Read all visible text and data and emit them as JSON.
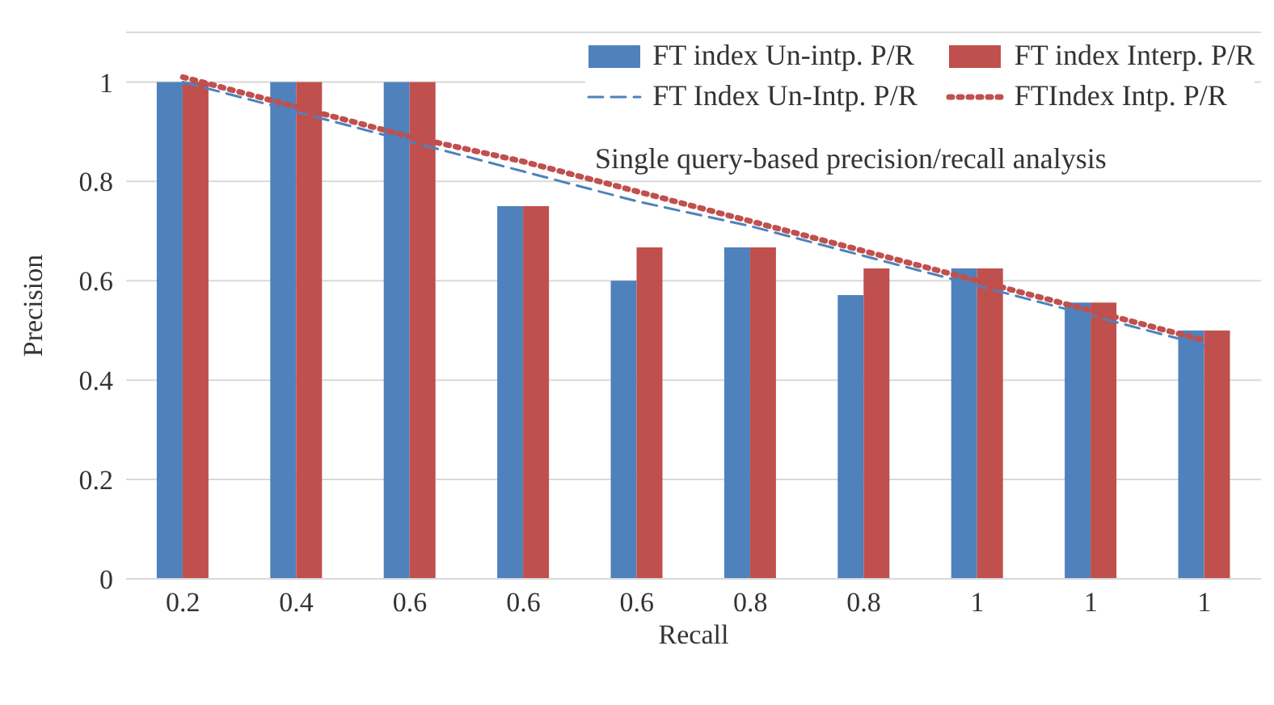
{
  "chart_data": {
    "type": "bar",
    "xlabel": "Recall",
    "ylabel": "Precision",
    "categories": [
      "0.2",
      "0.4",
      "0.6",
      "0.6",
      "0.6",
      "0.8",
      "0.8",
      "1",
      "1",
      "1"
    ],
    "series": [
      {
        "name": "FT index Un-intp. P/R",
        "color": "#4f81bd",
        "values": [
          1,
          1,
          1,
          0.75,
          0.6,
          0.667,
          0.571,
          0.625,
          0.556,
          0.5
        ]
      },
      {
        "name": "FT index Interp. P/R",
        "color": "#c0504d",
        "values": [
          1,
          1,
          1,
          0.75,
          0.667,
          0.667,
          0.625,
          0.625,
          0.556,
          0.5
        ]
      },
      {
        "name": "FT Index Un-Intp. P/R",
        "type": "line",
        "line_style": "dashed",
        "color": "#4f81bd",
        "values": [
          1.0,
          0.94,
          0.88,
          0.82,
          0.76,
          0.71,
          0.65,
          0.59,
          0.53,
          0.47
        ]
      },
      {
        "name": "FTIndex Intp. P/R",
        "type": "line",
        "line_style": "dotted",
        "color": "#c0504d",
        "values": [
          1.01,
          0.95,
          0.89,
          0.84,
          0.78,
          0.72,
          0.66,
          0.6,
          0.54,
          0.48
        ]
      }
    ],
    "ylim": [
      0,
      1.1
    ],
    "yticks": [
      0,
      0.2,
      0.4,
      0.6,
      0.8,
      1
    ],
    "grid": "y",
    "legend": "top right",
    "marker": "none",
    "annotations": [
      "Single query-based precision/recall analysis"
    ]
  }
}
